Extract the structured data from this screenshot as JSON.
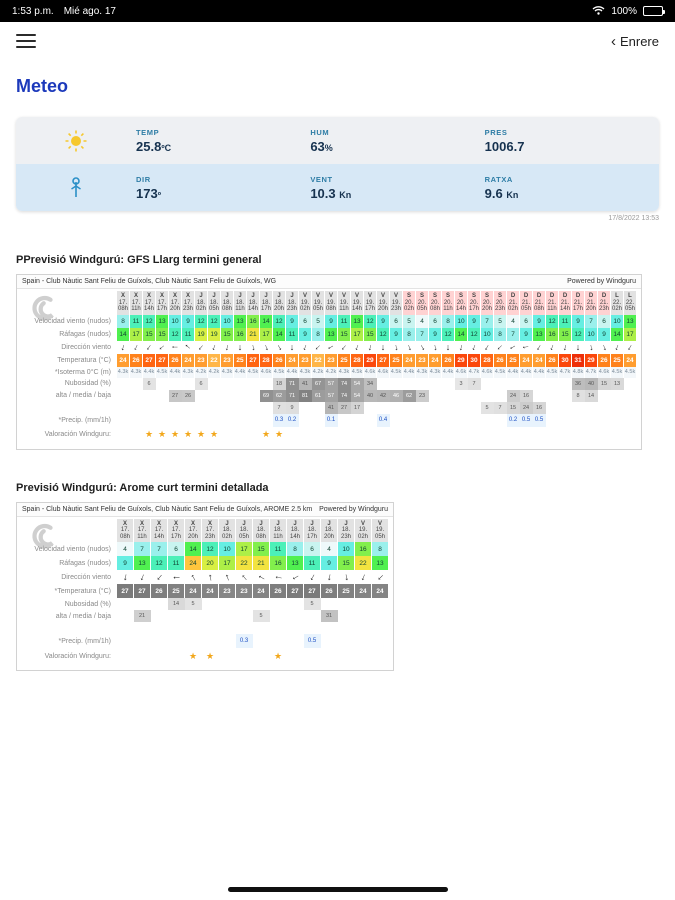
{
  "colors": {
    "accent-blue": "#1c39bb",
    "card-top": "#eef0f3",
    "card-bottom": "#d7e8f6",
    "label-teal": "#2e7da6",
    "star": "#f2a71b",
    "weekend": "#ffd2d2"
  },
  "status_bar": {
    "time": "1:53 p.m.",
    "date": "Mié ago. 17",
    "battery": "100%"
  },
  "nav": {
    "back": "Enrere"
  },
  "title": "Meteo",
  "card": {
    "timestamp": "17/8/2022 13:53",
    "rows": [
      {
        "cells": [
          {
            "label": "TEMP",
            "value": "25.8",
            "unit": "ºC"
          },
          {
            "label": "HUM",
            "value": "63",
            "unit": "%"
          },
          {
            "label": "PRES",
            "value": "1006.7",
            "unit": ""
          }
        ]
      },
      {
        "cells": [
          {
            "label": "DIR",
            "value": "173",
            "unit": "º"
          },
          {
            "label": "VENT",
            "value": "10.3",
            "unit": "Kn"
          },
          {
            "label": "RATXA",
            "value": "9.6",
            "unit": "Kn"
          }
        ]
      }
    ]
  },
  "tables": [
    {
      "heading": "PPrevisió Windgurú: GFS Llarg termini general",
      "source": "Spain - Club Nàutic Sant Feliu de Guíxols, Club Nàutic Sant Feliu de Guíxols, WG",
      "powered": "Powered by Windguru",
      "row_labels": {
        "wind": "Velocidad viento (nudos)",
        "gust": "Ráfagas (nudos)",
        "dir": "Dirección viento",
        "temp": "Temperatura (°C)",
        "isotherm": "*Isoterma 0°C (m)",
        "cloud1": "Nubosidad (%)",
        "cloud2": "alta / media / baja",
        "precip": "*Precip. (mm/1h)",
        "stars": "Valoración Windguru:"
      },
      "days": [
        {
          "d": "X",
          "n": "17.",
          "hours": [
            "08h",
            "11h",
            "14h",
            "17h",
            "20h",
            "23h"
          ],
          "weekend": false
        },
        {
          "d": "J",
          "n": "18.",
          "hours": [
            "02h",
            "05h",
            "08h",
            "11h",
            "14h",
            "17h",
            "20h",
            "23h"
          ],
          "weekend": false
        },
        {
          "d": "V",
          "n": "19.",
          "hours": [
            "02h",
            "05h",
            "08h",
            "11h",
            "14h",
            "17h",
            "20h",
            "23h"
          ],
          "weekend": false
        },
        {
          "d": "S",
          "n": "20.",
          "hours": [
            "02h",
            "05h",
            "08h",
            "11h",
            "14h",
            "17h",
            "20h",
            "23h"
          ],
          "weekend": true
        },
        {
          "d": "D",
          "n": "21.",
          "hours": [
            "02h",
            "05h",
            "08h",
            "11h",
            "14h",
            "17h",
            "20h",
            "23h"
          ],
          "weekend": true
        },
        {
          "d": "L",
          "n": "22.",
          "hours": [
            "02h",
            "05h"
          ],
          "weekend": false
        }
      ],
      "temp_palette": "warm",
      "wind": [
        8,
        11,
        12,
        13,
        10,
        9,
        12,
        12,
        10,
        13,
        16,
        14,
        12,
        9,
        6,
        5,
        9,
        11,
        13,
        12,
        9,
        6,
        5,
        4,
        6,
        8,
        10,
        9,
        7,
        5,
        4,
        6,
        9,
        12,
        11,
        9,
        7,
        6,
        10,
        13
      ],
      "gust": [
        14,
        17,
        15,
        15,
        12,
        11,
        19,
        19,
        15,
        16,
        21,
        17,
        14,
        11,
        9,
        8,
        13,
        15,
        17,
        15,
        12,
        9,
        8,
        7,
        9,
        12,
        14,
        12,
        10,
        8,
        7,
        9,
        13,
        16,
        15,
        12,
        10,
        9,
        14,
        17
      ],
      "dir": [
        15,
        25,
        35,
        50,
        90,
        130,
        40,
        20,
        10,
        0,
        350,
        340,
        330,
        0,
        20,
        45,
        60,
        40,
        20,
        10,
        0,
        350,
        340,
        330,
        350,
        0,
        10,
        20,
        30,
        45,
        60,
        80,
        30,
        20,
        10,
        0,
        350,
        340,
        20,
        30
      ],
      "temp": [
        24,
        26,
        27,
        27,
        26,
        24,
        23,
        22,
        23,
        25,
        27,
        28,
        26,
        24,
        23,
        22,
        23,
        25,
        28,
        29,
        27,
        25,
        24,
        23,
        24,
        26,
        29,
        30,
        28,
        26,
        25,
        24,
        24,
        26,
        30,
        31,
        29,
        26,
        25,
        24
      ],
      "isotherm": [
        "4.3k",
        "4.3k",
        "4.4k",
        "4.5k",
        "4.4k",
        "4.3k",
        "4.2k",
        "4.2k",
        "4.3k",
        "4.4k",
        "4.5k",
        "4.6k",
        "4.5k",
        "4.4k",
        "4.3k",
        "4.2k",
        "4.2k",
        "4.3k",
        "4.5k",
        "4.6k",
        "4.6k",
        "4.5k",
        "4.4k",
        "4.3k",
        "4.3k",
        "4.4k",
        "4.6k",
        "4.7k",
        "4.6k",
        "4.5k",
        "4.4k",
        "4.4k",
        "4.4k",
        "4.5k",
        "4.7k",
        "4.8k",
        "4.7k",
        "4.6k",
        "4.5k",
        "4.5k"
      ],
      "cloud": {
        "alta": {
          "2": 6,
          "6": 6,
          "12": 18,
          "13": 71,
          "14": 41,
          "15": 67,
          "16": 57,
          "17": 74,
          "18": 54,
          "19": 34,
          "26": 3,
          "27": 7,
          "35": 36,
          "36": 40,
          "37": 15,
          "38": 13
        },
        "media": {
          "4": 27,
          "5": 26,
          "11": 69,
          "12": 62,
          "13": 71,
          "14": 81,
          "15": 61,
          "16": 57,
          "17": 74,
          "18": 54,
          "19": 40,
          "20": 42,
          "21": 46,
          "22": 62,
          "23": 23,
          "30": 24,
          "31": 16,
          "35": 8,
          "36": 14
        },
        "baja": {
          "12": 7,
          "13": 9,
          "16": 41,
          "17": 27,
          "18": 17,
          "28": 5,
          "29": 7,
          "30": 15,
          "31": 24,
          "32": 16
        }
      },
      "precip": {
        "12": "0.3",
        "13": "0.2",
        "16": "0.1",
        "20": "0.4",
        "30": "0.2",
        "31": "0.5",
        "32": "0.5"
      },
      "stars": {
        "2": 1,
        "3": 1,
        "4": 1,
        "5": 1,
        "6": 1,
        "7": 1,
        "11": 1,
        "12": 1
      }
    },
    {
      "heading": "Previsió Windgurú: Arome curt termini detallada",
      "source": "Spain - Club Nàutic Sant Feliu de Guíxols, Club Nàutic Sant Feliu de Guíxols, AROME 2.5 km",
      "powered": "Powered by Windguru",
      "row_labels": {
        "wind": "Velocidad viento (nudos)",
        "gust": "Ráfagas (nudos)",
        "dir": "Dirección viento",
        "temp": "*Temperatura (°C)",
        "cloud1": "Nubosidad (%)",
        "cloud2": "alta / media / baja",
        "precip": "*Precip. (mm/1h)",
        "stars": "Valoración Windguru:"
      },
      "days": [
        {
          "d": "X",
          "n": "17.",
          "hours": [
            "08h",
            "11h",
            "14h",
            "17h",
            "20h",
            "23h"
          ],
          "weekend": false
        },
        {
          "d": "J",
          "n": "18.",
          "hours": [
            "02h",
            "05h",
            "08h",
            "11h",
            "14h",
            "17h",
            "20h",
            "23h"
          ],
          "weekend": false
        },
        {
          "d": "V",
          "n": "19.",
          "hours": [
            "02h",
            "05h"
          ],
          "weekend": false
        }
      ],
      "temp_palette": "gray",
      "wind": [
        4,
        7,
        7,
        6,
        14,
        12,
        10,
        17,
        15,
        11,
        8,
        6,
        4,
        10,
        16,
        8
      ],
      "gust": [
        9,
        13,
        12,
        11,
        24,
        20,
        17,
        22,
        21,
        16,
        13,
        11,
        9,
        15,
        22,
        13
      ],
      "dir": [
        10,
        20,
        40,
        90,
        150,
        170,
        160,
        140,
        120,
        100,
        60,
        30,
        10,
        350,
        20,
        45
      ],
      "temp": [
        27,
        27,
        26,
        25,
        24,
        24,
        23,
        23,
        24,
        26,
        27,
        27,
        26,
        25,
        24,
        24
      ],
      "cloud": {
        "alta": {
          "3": 14,
          "4": 5,
          "11": 5
        },
        "media": {
          "1": 21,
          "8": 5,
          "12": 31
        },
        "baja": {}
      },
      "precip": {
        "7": "0.3",
        "11": "0.5"
      },
      "stars": {
        "4": 1,
        "5": 1,
        "9": 1
      }
    }
  ]
}
